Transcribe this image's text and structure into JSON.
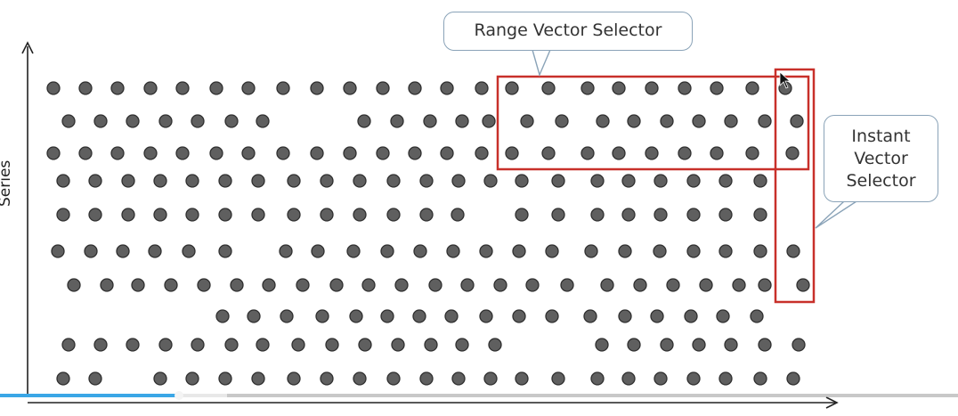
{
  "diagram": {
    "y_axis_label": "Series",
    "range_callout": "Range Vector Selector",
    "instant_callout_lines": [
      "Instant",
      "Vector",
      "Selector"
    ],
    "colors": {
      "dot": "#5f5f5f",
      "dot_outline": "#2f2f2f",
      "selector_box": "#c8302a",
      "callout_border": "#8aa3b8",
      "axis": "#222222"
    }
  },
  "video_progress": {
    "played_fraction": 0.186
  }
}
